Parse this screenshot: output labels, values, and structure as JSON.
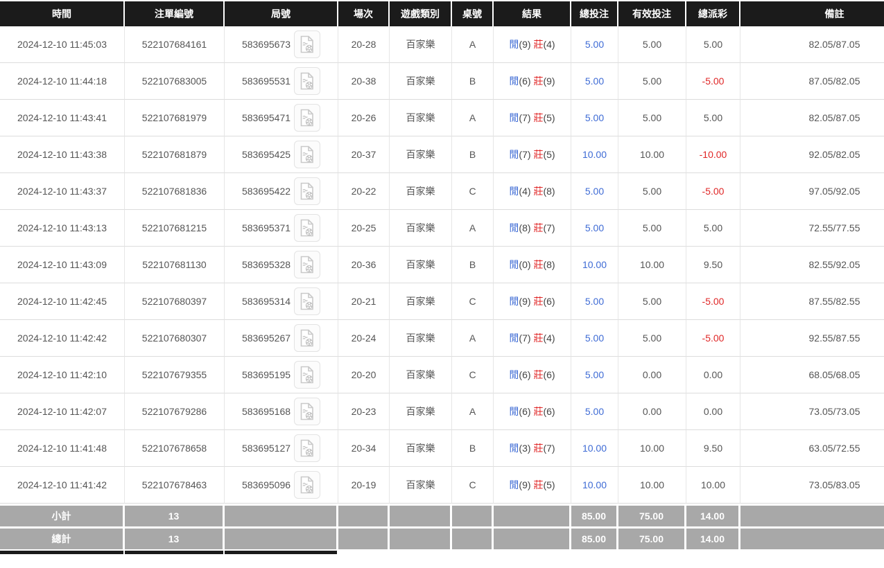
{
  "colors": {
    "header_bg": "#1b1b1b",
    "footer_bg": "#a8a8a8",
    "accent_blue": "#3e6bd5",
    "accent_red": "#e02626",
    "body_text": "#555555"
  },
  "table": {
    "columns": [
      {
        "key": "time",
        "label": "時間"
      },
      {
        "key": "bet_id",
        "label": "注單編號"
      },
      {
        "key": "round",
        "label": "局號"
      },
      {
        "key": "session",
        "label": "場次"
      },
      {
        "key": "game",
        "label": "遊戲類別"
      },
      {
        "key": "table_no",
        "label": "桌號"
      },
      {
        "key": "result",
        "label": "結果"
      },
      {
        "key": "total_bet",
        "label": "總投注"
      },
      {
        "key": "valid_bet",
        "label": "有效投注"
      },
      {
        "key": "payout",
        "label": "總派彩"
      },
      {
        "key": "remark",
        "label": "備註"
      }
    ],
    "result_labels": {
      "player": "閒",
      "banker": "莊"
    },
    "icons": {
      "round_replay": "video-replay-icon"
    },
    "rows": [
      {
        "time": "2024-12-10 11:45:03",
        "bet_id": "522107684161",
        "round": "583695673",
        "session": "20-28",
        "game": "百家樂",
        "table_no": "A",
        "player": 9,
        "banker": 4,
        "total_bet": "5.00",
        "valid_bet": "5.00",
        "payout": "5.00",
        "remark": "82.05/87.05"
      },
      {
        "time": "2024-12-10 11:44:18",
        "bet_id": "522107683005",
        "round": "583695531",
        "session": "20-38",
        "game": "百家樂",
        "table_no": "B",
        "player": 6,
        "banker": 9,
        "total_bet": "5.00",
        "valid_bet": "5.00",
        "payout": "-5.00",
        "remark": "87.05/82.05"
      },
      {
        "time": "2024-12-10 11:43:41",
        "bet_id": "522107681979",
        "round": "583695471",
        "session": "20-26",
        "game": "百家樂",
        "table_no": "A",
        "player": 7,
        "banker": 5,
        "total_bet": "5.00",
        "valid_bet": "5.00",
        "payout": "5.00",
        "remark": "82.05/87.05"
      },
      {
        "time": "2024-12-10 11:43:38",
        "bet_id": "522107681879",
        "round": "583695425",
        "session": "20-37",
        "game": "百家樂",
        "table_no": "B",
        "player": 7,
        "banker": 5,
        "total_bet": "10.00",
        "valid_bet": "10.00",
        "payout": "-10.00",
        "remark": "92.05/82.05"
      },
      {
        "time": "2024-12-10 11:43:37",
        "bet_id": "522107681836",
        "round": "583695422",
        "session": "20-22",
        "game": "百家樂",
        "table_no": "C",
        "player": 4,
        "banker": 8,
        "total_bet": "5.00",
        "valid_bet": "5.00",
        "payout": "-5.00",
        "remark": "97.05/92.05"
      },
      {
        "time": "2024-12-10 11:43:13",
        "bet_id": "522107681215",
        "round": "583695371",
        "session": "20-25",
        "game": "百家樂",
        "table_no": "A",
        "player": 8,
        "banker": 7,
        "total_bet": "5.00",
        "valid_bet": "5.00",
        "payout": "5.00",
        "remark": "72.55/77.55"
      },
      {
        "time": "2024-12-10 11:43:09",
        "bet_id": "522107681130",
        "round": "583695328",
        "session": "20-36",
        "game": "百家樂",
        "table_no": "B",
        "player": 0,
        "banker": 8,
        "total_bet": "10.00",
        "valid_bet": "10.00",
        "payout": "9.50",
        "remark": "82.55/92.05"
      },
      {
        "time": "2024-12-10 11:42:45",
        "bet_id": "522107680397",
        "round": "583695314",
        "session": "20-21",
        "game": "百家樂",
        "table_no": "C",
        "player": 9,
        "banker": 6,
        "total_bet": "5.00",
        "valid_bet": "5.00",
        "payout": "-5.00",
        "remark": "87.55/82.55"
      },
      {
        "time": "2024-12-10 11:42:42",
        "bet_id": "522107680307",
        "round": "583695267",
        "session": "20-24",
        "game": "百家樂",
        "table_no": "A",
        "player": 7,
        "banker": 4,
        "total_bet": "5.00",
        "valid_bet": "5.00",
        "payout": "-5.00",
        "remark": "92.55/87.55"
      },
      {
        "time": "2024-12-10 11:42:10",
        "bet_id": "522107679355",
        "round": "583695195",
        "session": "20-20",
        "game": "百家樂",
        "table_no": "C",
        "player": 6,
        "banker": 6,
        "total_bet": "5.00",
        "valid_bet": "0.00",
        "payout": "0.00",
        "remark": "68.05/68.05"
      },
      {
        "time": "2024-12-10 11:42:07",
        "bet_id": "522107679286",
        "round": "583695168",
        "session": "20-23",
        "game": "百家樂",
        "table_no": "A",
        "player": 6,
        "banker": 6,
        "total_bet": "5.00",
        "valid_bet": "0.00",
        "payout": "0.00",
        "remark": "73.05/73.05"
      },
      {
        "time": "2024-12-10 11:41:48",
        "bet_id": "522107678658",
        "round": "583695127",
        "session": "20-34",
        "game": "百家樂",
        "table_no": "B",
        "player": 3,
        "banker": 7,
        "total_bet": "10.00",
        "valid_bet": "10.00",
        "payout": "9.50",
        "remark": "63.05/72.55"
      },
      {
        "time": "2024-12-10 11:41:42",
        "bet_id": "522107678463",
        "round": "583695096",
        "session": "20-19",
        "game": "百家樂",
        "table_no": "C",
        "player": 9,
        "banker": 5,
        "total_bet": "10.00",
        "valid_bet": "10.00",
        "payout": "10.00",
        "remark": "73.05/83.05"
      }
    ],
    "subtotal": {
      "label": "小計",
      "count": "13",
      "total_bet": "85.00",
      "valid_bet": "75.00",
      "payout": "14.00"
    },
    "total": {
      "label": "總計",
      "count": "13",
      "total_bet": "85.00",
      "valid_bet": "75.00",
      "payout": "14.00"
    }
  }
}
